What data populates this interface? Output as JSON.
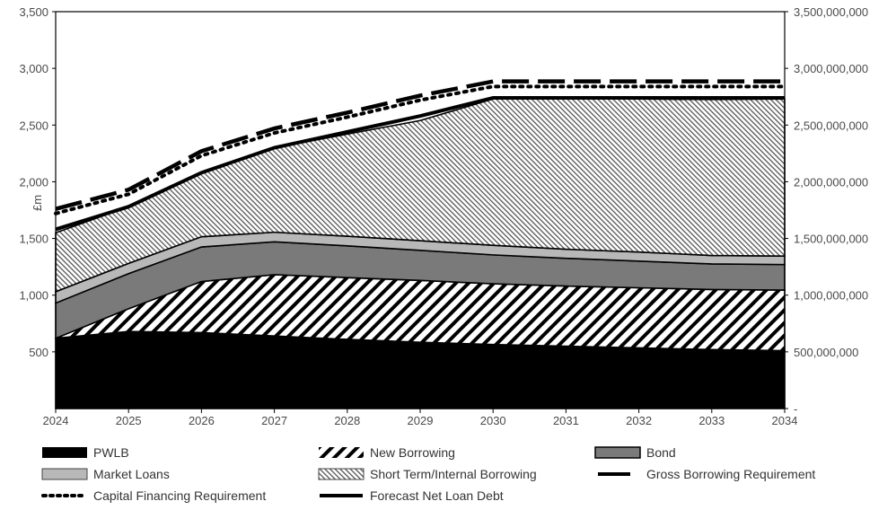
{
  "chart_data": {
    "type": "area",
    "title": "",
    "ylabel": "£m",
    "x": [
      2024,
      2025,
      2026,
      2027,
      2028,
      2029,
      2030,
      2031,
      2032,
      2033,
      2034
    ],
    "x_tick_labels": [
      "2024",
      "2025",
      "2026",
      "2027",
      "2028",
      "2029",
      "2030",
      "2031",
      "2032",
      "2033",
      "2034"
    ],
    "ylim": [
      0,
      3500
    ],
    "y_tick_labels_left": [
      "500",
      "1,000",
      "1,500",
      "2,000",
      "2,500",
      "3,000",
      "3,500"
    ],
    "y_tick_values_left": [
      500,
      1000,
      1500,
      2000,
      2500,
      3000,
      3500
    ],
    "y_tick_labels_right": [
      "-",
      "500,000,000",
      "1,000,000,000",
      "1,500,000,000",
      "2,000,000,000",
      "2,500,000,000",
      "3,000,000,000",
      "3,500,000,000"
    ],
    "y_tick_values_right": [
      0,
      500,
      1000,
      1500,
      2000,
      2500,
      3000,
      3500
    ],
    "stacked_series": [
      {
        "key": "pwlb",
        "name": "PWLB",
        "fill": "#000000",
        "pattern": "solid",
        "values": [
          620,
          680,
          670,
          640,
          610,
          585,
          565,
          550,
          535,
          520,
          510
        ]
      },
      {
        "key": "new_borrowing",
        "name": "New Borrowing",
        "fill": "#000000",
        "pattern": "diagonal",
        "values": [
          0,
          200,
          450,
          540,
          545,
          545,
          535,
          530,
          530,
          530,
          535
        ]
      },
      {
        "key": "bond",
        "name": "Bond",
        "fill": "#7a7a7a",
        "pattern": "solid",
        "values": [
          310,
          310,
          305,
          290,
          280,
          265,
          255,
          245,
          235,
          225,
          225
        ]
      },
      {
        "key": "market_loans",
        "name": "Market Loans",
        "fill": "#b8b8b8",
        "pattern": "solid",
        "values": [
          100,
          90,
          90,
          85,
          85,
          85,
          85,
          80,
          80,
          75,
          75
        ]
      },
      {
        "key": "short_term",
        "name": "Short Term/Internal Borrowing",
        "fill": "#ffffff",
        "pattern": "fine-hatch",
        "values": [
          520,
          500,
          565,
          745,
          900,
          1060,
          1290,
          1325,
          1350,
          1375,
          1385
        ]
      }
    ],
    "line_series": [
      {
        "key": "gbr",
        "name": "Gross Borrowing Requirement",
        "style": "dashed",
        "values": [
          1760,
          1930,
          2270,
          2470,
          2610,
          2760,
          2885,
          2885,
          2885,
          2885,
          2885
        ]
      },
      {
        "key": "cfr",
        "name": "Capital Financing Requirement",
        "style": "dotted",
        "values": [
          1720,
          1890,
          2230,
          2430,
          2570,
          2720,
          2840,
          2840,
          2840,
          2840,
          2840
        ]
      },
      {
        "key": "fnld",
        "name": "Forecast Net Loan Debt",
        "style": "solid",
        "values": [
          1580,
          1780,
          2080,
          2300,
          2440,
          2580,
          2740,
          2740,
          2740,
          2740,
          2740
        ]
      }
    ],
    "legend_position": "bottom",
    "grid": false
  },
  "legend": {
    "pwlb": "PWLB",
    "new_borrowing": "New Borrowing",
    "bond": "Bond",
    "market_loans": "Market Loans",
    "short_term": "Short Term/Internal Borrowing",
    "gbr": "Gross Borrowing Requirement",
    "cfr": "Capital Financing Requirement",
    "fnld": "Forecast Net Loan Debt"
  }
}
